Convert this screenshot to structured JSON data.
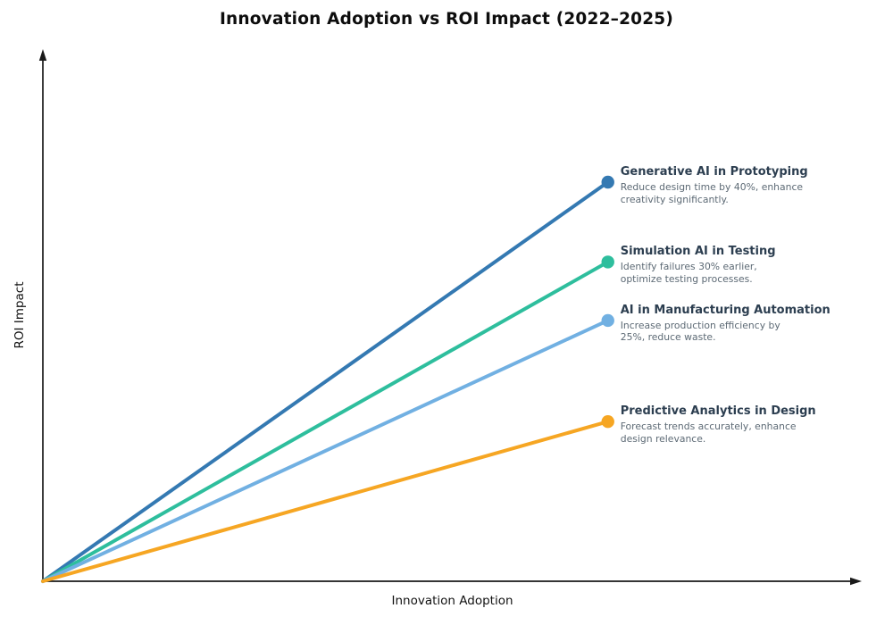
{
  "chart_data": {
    "type": "line",
    "title": "Innovation Adoption vs ROI Impact (2022–2025)",
    "xlabel": "Innovation Adoption",
    "ylabel": "ROI Impact",
    "xlim": [
      0,
      100
    ],
    "ylim": [
      0,
      100
    ],
    "grid": false,
    "ticks_visible": false,
    "axis_style": "arrows",
    "axis_color": "#1a1a1a",
    "background_color": "#ffffff",
    "annotation_title_color": "#2C3E50",
    "annotation_text_color": "#5D6A75",
    "legend_position": "annotations-at-line-ends",
    "series": [
      {
        "name": "Generative AI in Prototyping",
        "description": "Reduce design time by 40%, enhance\ncreativity significantly.",
        "color": "#3479B2",
        "x": [
          0,
          69
        ],
        "y": [
          0,
          75
        ]
      },
      {
        "name": "Simulation AI in Testing",
        "description": "Identify failures 30% earlier,\noptimize testing processes.",
        "color": "#2EBE9D",
        "x": [
          0,
          69
        ],
        "y": [
          0,
          60
        ]
      },
      {
        "name": "AI in Manufacturing Automation",
        "description": "Increase production efficiency by\n25%, reduce waste.",
        "color": "#71B0E2",
        "x": [
          0,
          69
        ],
        "y": [
          0,
          49
        ]
      },
      {
        "name": "Predictive Analytics in Design",
        "description": "Forecast trends accurately, enhance\ndesign relevance.",
        "color": "#F6A623",
        "x": [
          0,
          69
        ],
        "y": [
          0,
          30
        ]
      }
    ]
  }
}
